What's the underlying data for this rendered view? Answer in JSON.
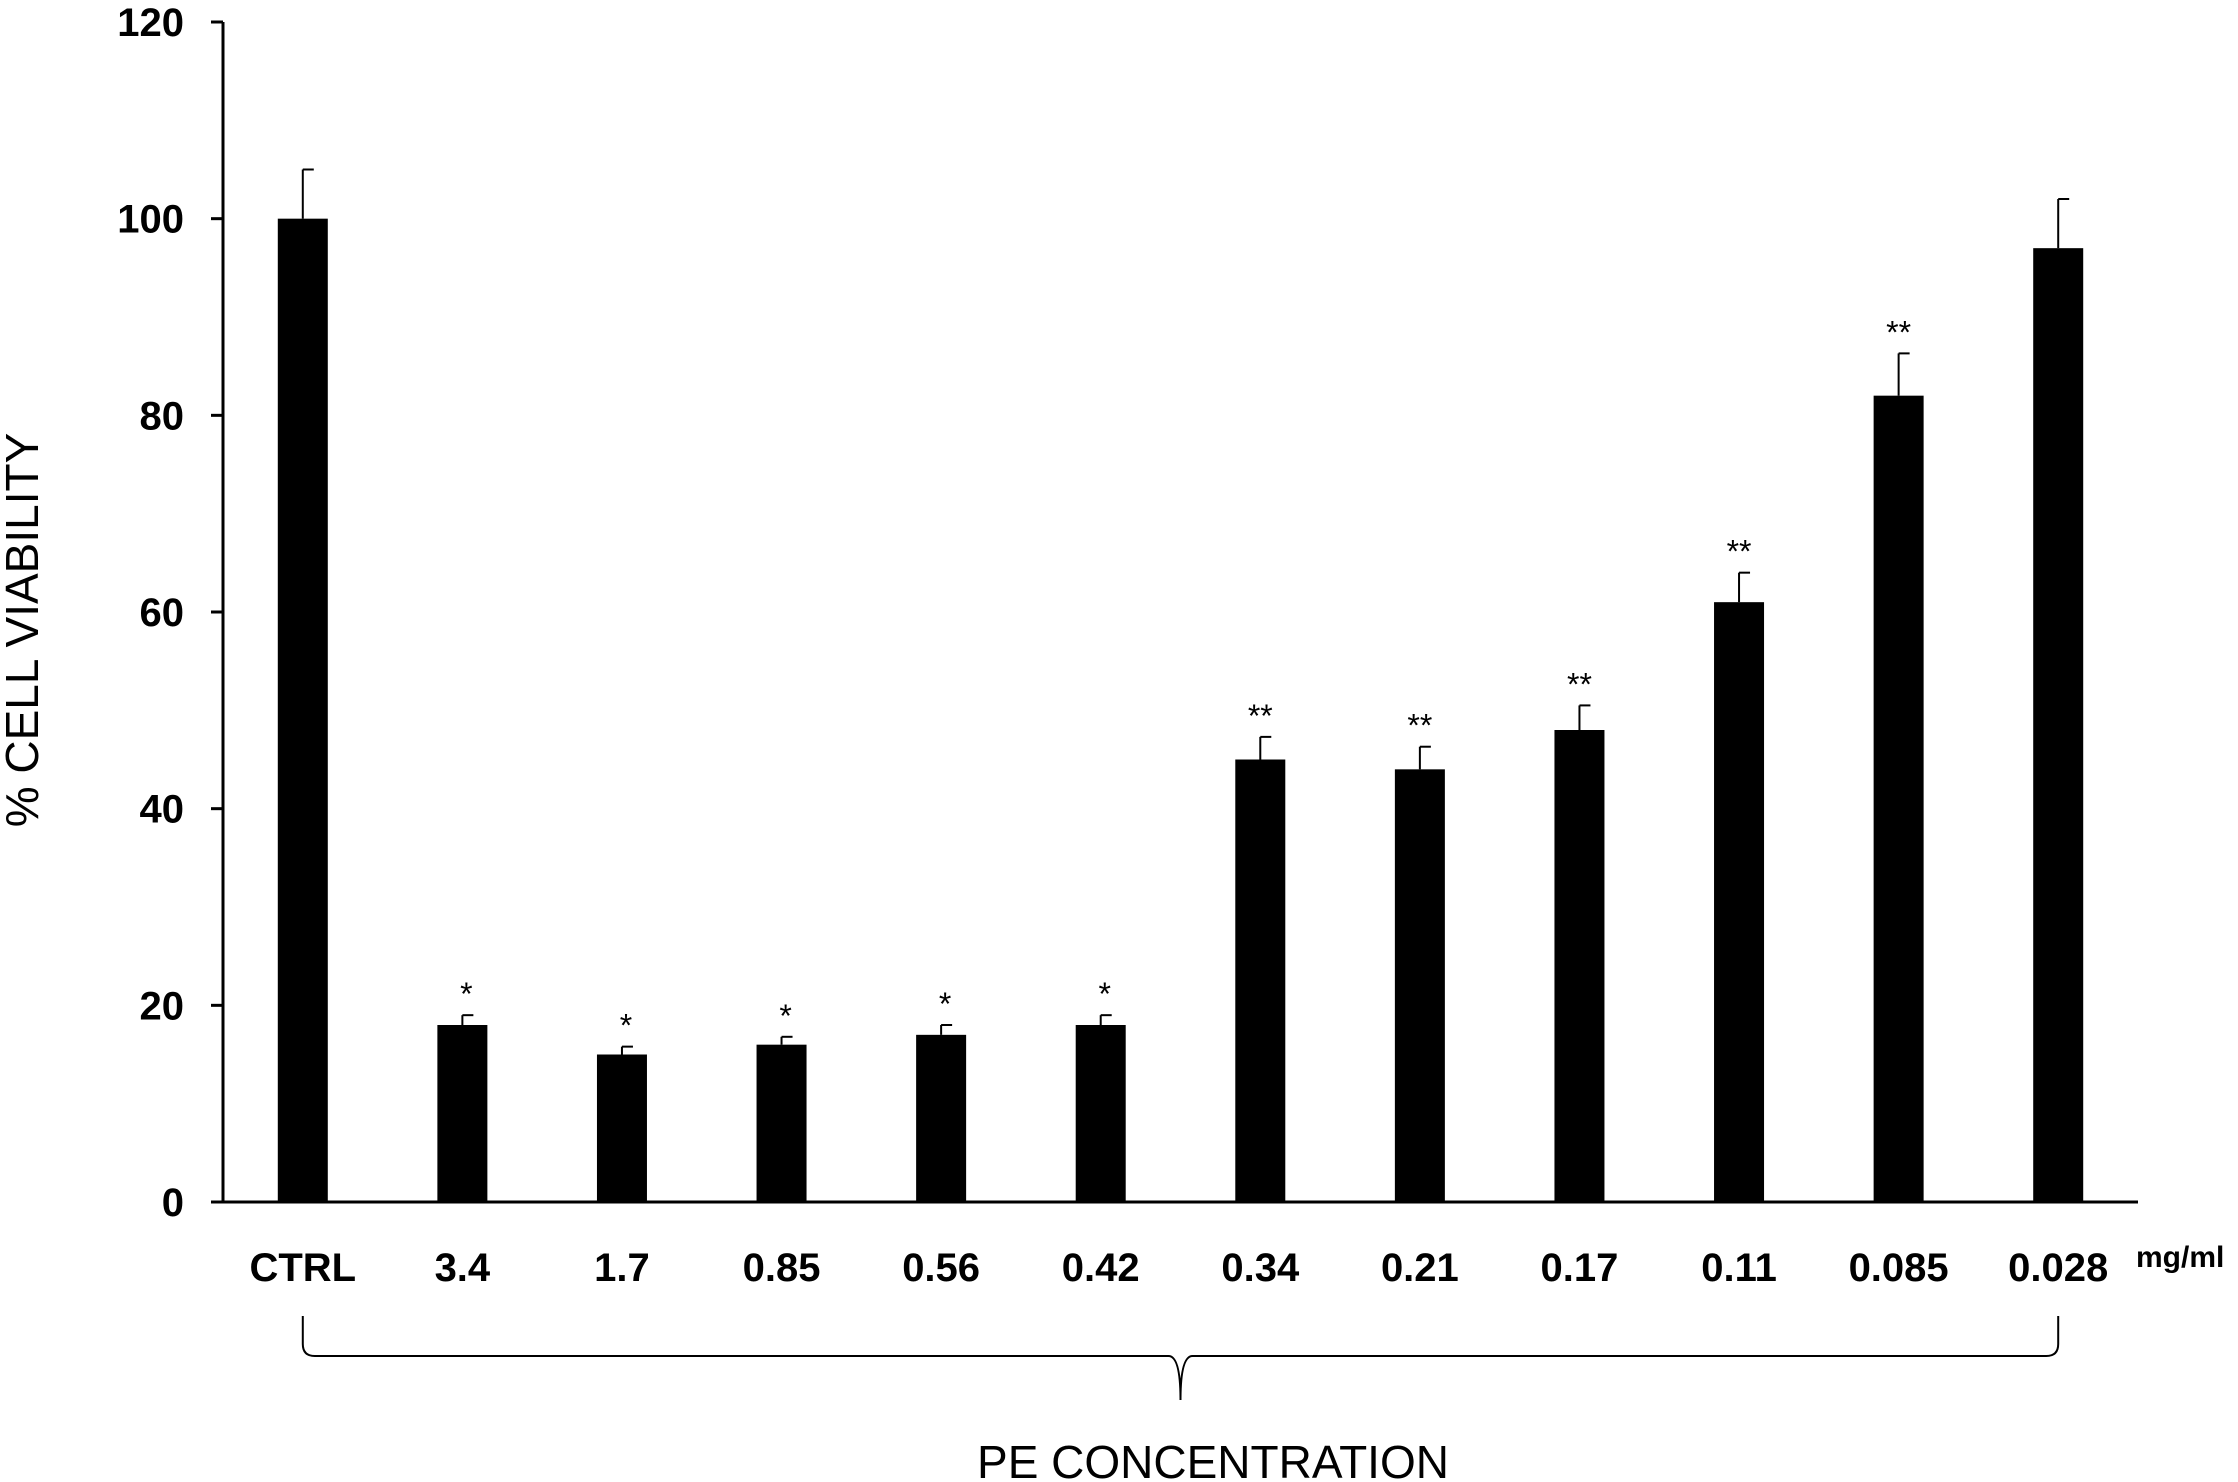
{
  "chart_data": {
    "type": "bar",
    "categories": [
      "CTRL",
      "3.4",
      "1.7",
      "0.85",
      "0.56",
      "0.42",
      "0.34",
      "0.21",
      "0.17",
      "0.11",
      "0.085",
      "0.028"
    ],
    "values": [
      100,
      18,
      15,
      16,
      17,
      18,
      45,
      44,
      48,
      61,
      82,
      97
    ],
    "errors": [
      5,
      1,
      0.8,
      0.8,
      1,
      1,
      2.3,
      2.3,
      2.5,
      3,
      4.3,
      5
    ],
    "significance": [
      "",
      "*",
      "*",
      "*",
      "*",
      "*",
      "**",
      "**",
      "**",
      "**",
      "**",
      ""
    ],
    "ylabel": "% CELL VIABILITY",
    "xlabel": "PE CONCENTRATION",
    "x_unit": "mg/ml",
    "ylim": [
      0,
      120
    ],
    "yticks": [
      0,
      20,
      40,
      60,
      80,
      100,
      120
    ],
    "bar_color": "#000000",
    "grid": false,
    "legend": "none"
  }
}
